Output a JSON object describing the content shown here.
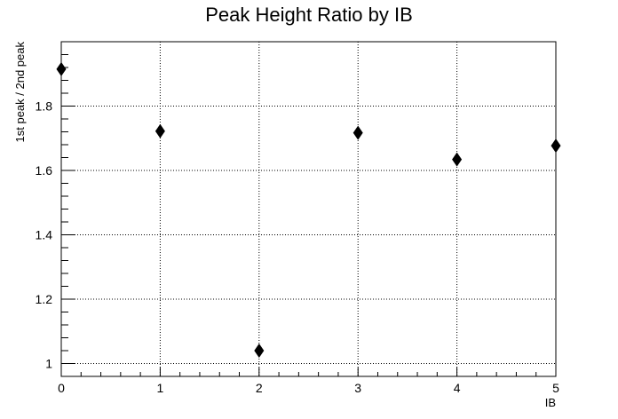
{
  "chart_data": {
    "type": "scatter",
    "title": "Peak Height Ratio by IB",
    "xlabel": "IB",
    "ylabel": "1st peak / 2nd peak",
    "xlim": [
      0,
      5
    ],
    "ylim": [
      0.96,
      2.0
    ],
    "grid": true,
    "marker": "diamond",
    "x_ticks": [
      "0",
      "1",
      "2",
      "3",
      "4",
      "5"
    ],
    "y_ticks": [
      "1",
      "1.2",
      "1.4",
      "1.6",
      "1.8"
    ],
    "series": [
      {
        "x": [
          0,
          1,
          2,
          3,
          4,
          5
        ],
        "y": [
          1.915,
          1.722,
          1.04,
          1.717,
          1.634,
          1.677
        ]
      }
    ]
  }
}
